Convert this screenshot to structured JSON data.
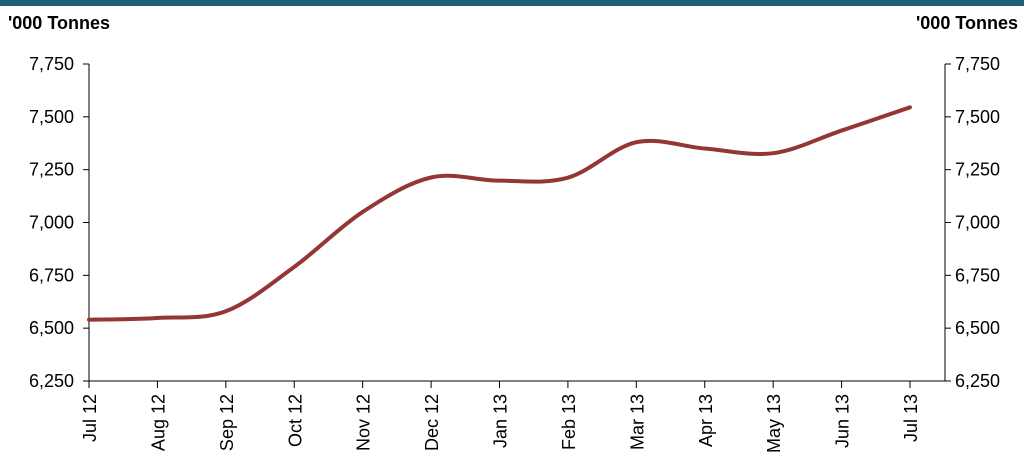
{
  "chart_data": {
    "type": "line",
    "units_left": "'000 Tonnes",
    "units_right": "'000 Tonnes",
    "categories": [
      "Jul 12",
      "Aug 12",
      "Sep 12",
      "Oct 12",
      "Nov 12",
      "Dec 12",
      "Jan 13",
      "Feb 13",
      "Mar 13",
      "Apr 13",
      "May 13",
      "Jun 13",
      "Jul 13"
    ],
    "series": [
      {
        "values": [
          6540,
          6548,
          6580,
          6790,
          7050,
          7213,
          7198,
          7212,
          7380,
          7350,
          7328,
          7435,
          7545
        ],
        "color": "#943634"
      }
    ],
    "ylim": [
      6250,
      7750
    ],
    "yticks": [
      6250,
      6500,
      6750,
      7000,
      7250,
      7500,
      7750
    ],
    "ytick_labels": [
      "6,250",
      "6,500",
      "6,750",
      "7,000",
      "7,250",
      "7,500",
      "7,750"
    ],
    "dual_axis": true,
    "grid": false,
    "legend": "none"
  },
  "colors": {
    "top_band": "#1f5f7a",
    "line": "#943634",
    "axis": "#000000"
  }
}
